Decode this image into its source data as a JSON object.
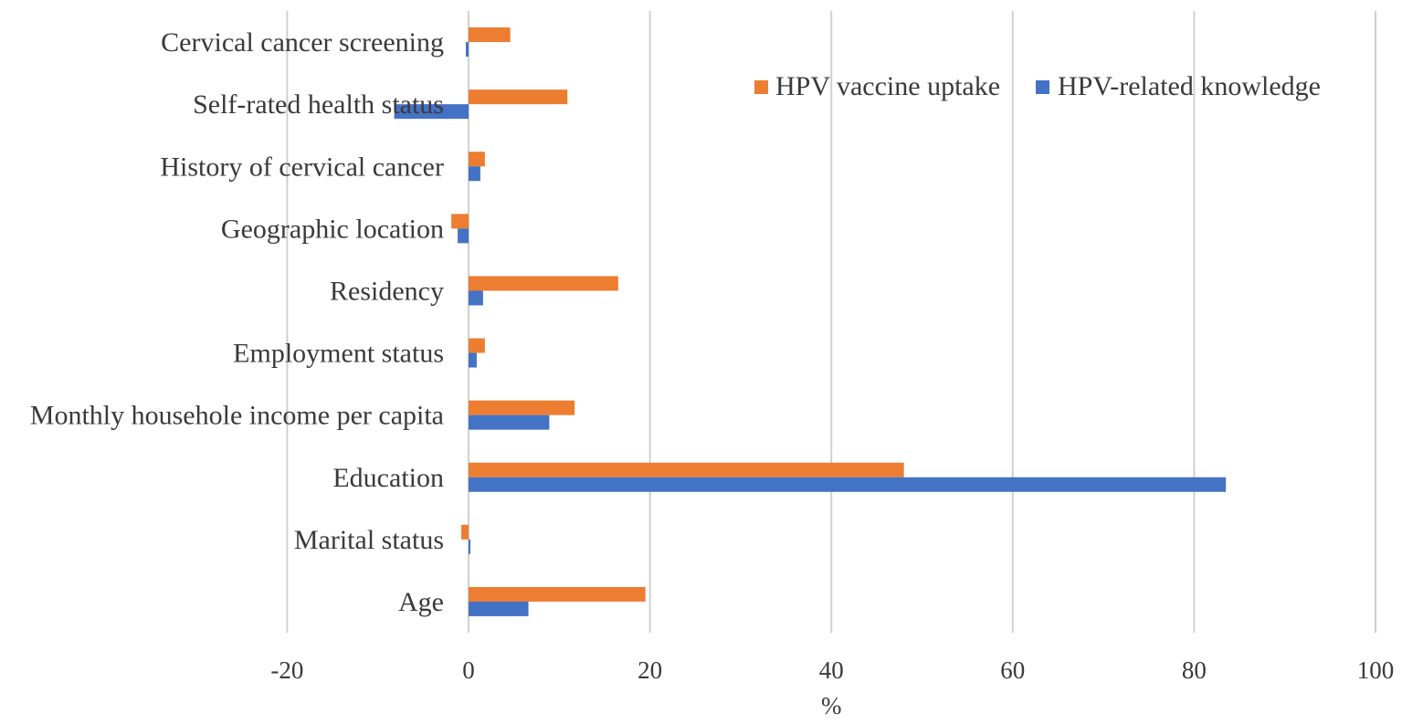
{
  "chart_data": {
    "type": "bar",
    "orientation": "horizontal",
    "title": "",
    "xlabel": "%",
    "ylabel": "",
    "xlim": [
      -20,
      100
    ],
    "xticks": [
      -20,
      0,
      20,
      40,
      60,
      80,
      100
    ],
    "xtick_labels": [
      "-20",
      "0",
      "20",
      "40",
      "60",
      "80",
      "100"
    ],
    "grid": true,
    "legend_position": "top-right",
    "categories": [
      "Cervical cancer screening",
      "Self-rated health status",
      "History of cervical cancer",
      "Geographic location",
      "Residency",
      "Employment status",
      "Monthly househole income per capita",
      "Education",
      "Marital status",
      "Age"
    ],
    "series": [
      {
        "name": "HPV vaccine uptake",
        "color": "#ED7D31",
        "values": [
          4.6,
          10.9,
          1.8,
          -1.9,
          16.5,
          1.8,
          11.7,
          48.0,
          -0.8,
          19.5
        ]
      },
      {
        "name": "HPV-related knowledge",
        "color": "#4472C4",
        "values": [
          -0.3,
          -8.2,
          1.3,
          -1.2,
          1.6,
          0.9,
          8.9,
          83.5,
          0.2,
          6.6
        ]
      }
    ]
  }
}
